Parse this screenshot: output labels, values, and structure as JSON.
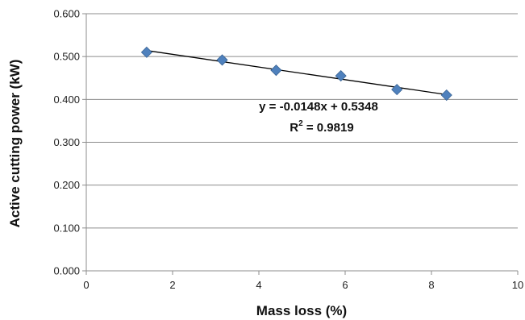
{
  "chart_data": {
    "type": "scatter",
    "xlabel": "Mass loss (%)",
    "ylabel": "Active cutting power  (kW)",
    "xlim": [
      0,
      10
    ],
    "ylim": [
      0,
      0.6
    ],
    "x_ticks": [
      "0",
      "2",
      "4",
      "6",
      "8",
      "10"
    ],
    "y_ticks": [
      "0.000",
      "0.100",
      "0.200",
      "0.300",
      "0.400",
      "0.500",
      "0.600"
    ],
    "grid": "horizontal",
    "series": [
      {
        "x": [
          1.4,
          3.15,
          4.4,
          5.9,
          7.2,
          8.35
        ],
        "y": [
          0.51,
          0.492,
          0.468,
          0.455,
          0.423,
          0.41
        ],
        "marker": "diamond",
        "color": "#4F81BD"
      }
    ],
    "trendline": {
      "type": "linear",
      "slope": -0.0148,
      "intercept": 0.5348,
      "x_range": [
        1.4,
        8.35
      ],
      "color": "#000000",
      "equation": "y = -0.0148x + 0.5348",
      "r2_prefix": "R",
      "r2_sup": "2",
      "r2_suffix": " = 0.9819"
    }
  }
}
